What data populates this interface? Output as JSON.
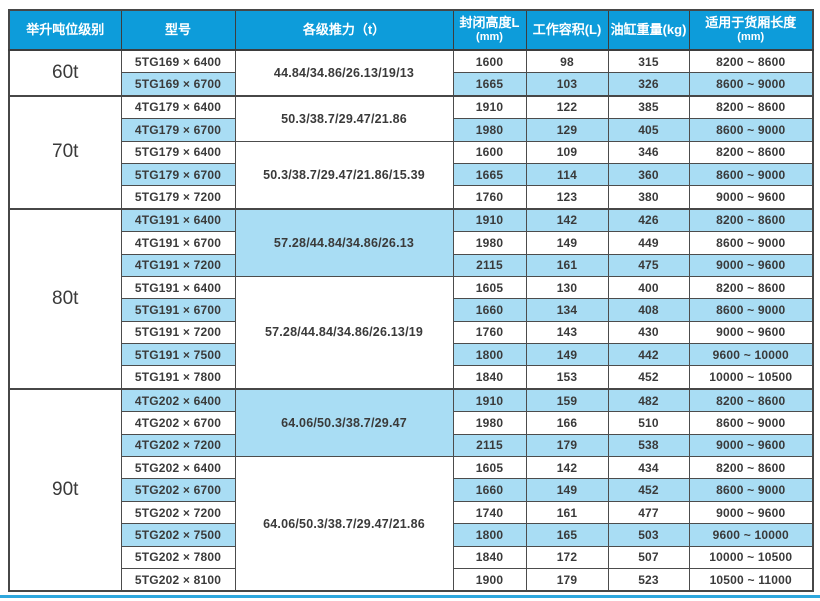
{
  "colors": {
    "header_bg": "#0d9cda",
    "header_text": "#ffffff",
    "row_shaded_bg": "#a9ddf4",
    "border": "#4c4c4c",
    "text": "#3a3a3a",
    "bottom_rule": "#2ea7dd"
  },
  "table": {
    "headers": [
      {
        "label": "举升吨位级别",
        "sub": ""
      },
      {
        "label": "型号",
        "sub": ""
      },
      {
        "label": "各级推力（t）",
        "sub": ""
      },
      {
        "label": "封闭高度L",
        "sub": "(mm)"
      },
      {
        "label": "工作容积(L)",
        "sub": ""
      },
      {
        "label": "油缸重量(kg)",
        "sub": ""
      },
      {
        "label": "适用于货厢长度",
        "sub": "(mm)"
      }
    ],
    "groups": [
      {
        "tonnage": "60t",
        "subgroups": [
          {
            "thrust": "44.84/34.86/26.13/19/13",
            "thrust_shaded": false,
            "rows": [
              {
                "model": "5TG169 × 6400",
                "height": "1600",
                "volume": "98",
                "weight": "315",
                "box_length": "8200 ~ 8600",
                "shaded": false
              },
              {
                "model": "5TG169 × 6700",
                "height": "1665",
                "volume": "103",
                "weight": "326",
                "box_length": "8600 ~ 9000",
                "shaded": true
              }
            ]
          }
        ]
      },
      {
        "tonnage": "70t",
        "subgroups": [
          {
            "thrust": "50.3/38.7/29.47/21.86",
            "thrust_shaded": false,
            "rows": [
              {
                "model": "4TG179 × 6400",
                "height": "1910",
                "volume": "122",
                "weight": "385",
                "box_length": "8200 ~ 8600",
                "shaded": false
              },
              {
                "model": "4TG179 × 6700",
                "height": "1980",
                "volume": "129",
                "weight": "405",
                "box_length": "8600 ~ 9000",
                "shaded": true
              }
            ]
          },
          {
            "thrust": "50.3/38.7/29.47/21.86/15.39",
            "thrust_shaded": false,
            "rows": [
              {
                "model": "5TG179 × 6400",
                "height": "1600",
                "volume": "109",
                "weight": "346",
                "box_length": "8200 ~ 8600",
                "shaded": false
              },
              {
                "model": "5TG179 × 6700",
                "height": "1665",
                "volume": "114",
                "weight": "360",
                "box_length": "8600 ~ 9000",
                "shaded": true
              },
              {
                "model": "5TG179 × 7200",
                "height": "1760",
                "volume": "123",
                "weight": "380",
                "box_length": "9000 ~ 9600",
                "shaded": false
              }
            ]
          }
        ]
      },
      {
        "tonnage": "80t",
        "subgroups": [
          {
            "thrust": "57.28/44.84/34.86/26.13",
            "thrust_shaded": true,
            "rows": [
              {
                "model": "4TG191 × 6400",
                "height": "1910",
                "volume": "142",
                "weight": "426",
                "box_length": "8200 ~ 8600",
                "shaded": true
              },
              {
                "model": "4TG191 × 6700",
                "height": "1980",
                "volume": "149",
                "weight": "449",
                "box_length": "8600 ~ 9000",
                "shaded": false
              },
              {
                "model": "4TG191 × 7200",
                "height": "2115",
                "volume": "161",
                "weight": "475",
                "box_length": "9000 ~ 9600",
                "shaded": true
              }
            ]
          },
          {
            "thrust": "57.28/44.84/34.86/26.13/19",
            "thrust_shaded": false,
            "rows": [
              {
                "model": "5TG191 × 6400",
                "height": "1605",
                "volume": "130",
                "weight": "400",
                "box_length": "8200 ~ 8600",
                "shaded": false
              },
              {
                "model": "5TG191 × 6700",
                "height": "1660",
                "volume": "134",
                "weight": "408",
                "box_length": "8600 ~ 9000",
                "shaded": true
              },
              {
                "model": "5TG191 × 7200",
                "height": "1760",
                "volume": "143",
                "weight": "430",
                "box_length": "9000 ~ 9600",
                "shaded": false
              },
              {
                "model": "5TG191 × 7500",
                "height": "1800",
                "volume": "149",
                "weight": "442",
                "box_length": "9600 ~ 10000",
                "shaded": true
              },
              {
                "model": "5TG191 × 7800",
                "height": "1840",
                "volume": "153",
                "weight": "452",
                "box_length": "10000 ~ 10500",
                "shaded": false
              }
            ]
          }
        ]
      },
      {
        "tonnage": "90t",
        "subgroups": [
          {
            "thrust": "64.06/50.3/38.7/29.47",
            "thrust_shaded": true,
            "rows": [
              {
                "model": "4TG202 × 6400",
                "height": "1910",
                "volume": "159",
                "weight": "482",
                "box_length": "8200 ~ 8600",
                "shaded": true
              },
              {
                "model": "4TG202 × 6700",
                "height": "1980",
                "volume": "166",
                "weight": "510",
                "box_length": "8600 ~ 9000",
                "shaded": false
              },
              {
                "model": "4TG202 × 7200",
                "height": "2115",
                "volume": "179",
                "weight": "538",
                "box_length": "9000 ~ 9600",
                "shaded": true
              }
            ]
          },
          {
            "thrust": "64.06/50.3/38.7/29.47/21.86",
            "thrust_shaded": false,
            "rows": [
              {
                "model": "5TG202 × 6400",
                "height": "1605",
                "volume": "142",
                "weight": "434",
                "box_length": "8200 ~ 8600",
                "shaded": false
              },
              {
                "model": "5TG202 × 6700",
                "height": "1660",
                "volume": "149",
                "weight": "452",
                "box_length": "8600 ~ 9000",
                "shaded": true
              },
              {
                "model": "5TG202 × 7200",
                "height": "1740",
                "volume": "161",
                "weight": "477",
                "box_length": "9000 ~ 9600",
                "shaded": false
              },
              {
                "model": "5TG202 × 7500",
                "height": "1800",
                "volume": "165",
                "weight": "503",
                "box_length": "9600 ~ 10000",
                "shaded": true
              },
              {
                "model": "5TG202 × 7800",
                "height": "1840",
                "volume": "172",
                "weight": "507",
                "box_length": "10000 ~ 10500",
                "shaded": false
              },
              {
                "model": "5TG202 × 8100",
                "height": "1900",
                "volume": "179",
                "weight": "523",
                "box_length": "10500 ~ 11000",
                "shaded": false
              }
            ]
          }
        ]
      }
    ]
  }
}
